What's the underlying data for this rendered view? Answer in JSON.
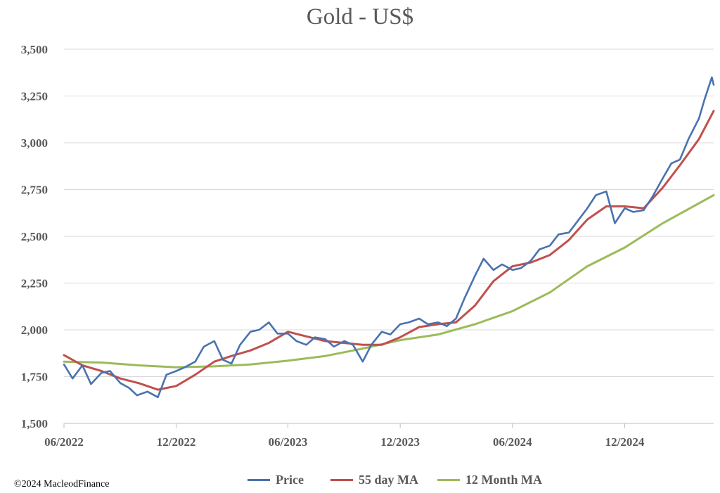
{
  "chart_data": {
    "type": "line",
    "title": "Gold - US$",
    "xlabel": "",
    "ylabel": "",
    "x_tick_labels": [
      "06/2022",
      "12/2022",
      "06/2023",
      "12/2023",
      "06/2024",
      "12/2024"
    ],
    "y_tick_labels": [
      "1,500",
      "1,750",
      "2,000",
      "2,250",
      "2,500",
      "2,750",
      "3,000",
      "3,250",
      "3,500"
    ],
    "ylim": [
      1500,
      3500
    ],
    "xlim": [
      "2022-06-01",
      "2025-04-25"
    ],
    "grid": "horizontal",
    "legend_position": "bottom",
    "series": [
      {
        "name": "Price",
        "color": "#4a72b0",
        "x": [
          "2022-06-01",
          "2022-06-15",
          "2022-07-01",
          "2022-07-15",
          "2022-08-01",
          "2022-08-15",
          "2022-09-01",
          "2022-09-15",
          "2022-09-28",
          "2022-10-15",
          "2022-11-01",
          "2022-11-15",
          "2022-12-01",
          "2022-12-15",
          "2023-01-01",
          "2023-01-15",
          "2023-02-01",
          "2023-02-15",
          "2023-03-01",
          "2023-03-15",
          "2023-04-01",
          "2023-04-15",
          "2023-05-01",
          "2023-05-15",
          "2023-06-01",
          "2023-06-15",
          "2023-07-01",
          "2023-07-15",
          "2023-08-01",
          "2023-08-15",
          "2023-09-01",
          "2023-09-15",
          "2023-10-01",
          "2023-10-15",
          "2023-11-01",
          "2023-11-15",
          "2023-12-01",
          "2023-12-15",
          "2024-01-01",
          "2024-01-15",
          "2024-02-01",
          "2024-02-15",
          "2024-03-01",
          "2024-03-15",
          "2024-04-01",
          "2024-04-15",
          "2024-05-01",
          "2024-05-15",
          "2024-06-01",
          "2024-06-15",
          "2024-07-01",
          "2024-07-15",
          "2024-08-01",
          "2024-08-15",
          "2024-09-01",
          "2024-09-15",
          "2024-10-01",
          "2024-10-15",
          "2024-11-01",
          "2024-11-15",
          "2024-12-01",
          "2024-12-15",
          "2025-01-01",
          "2025-01-15",
          "2025-02-01",
          "2025-02-15",
          "2025-03-01",
          "2025-03-15",
          "2025-04-01",
          "2025-04-10",
          "2025-04-22",
          "2025-04-25"
        ],
        "values": [
          1815,
          1740,
          1810,
          1710,
          1770,
          1780,
          1715,
          1690,
          1650,
          1670,
          1640,
          1760,
          1780,
          1800,
          1830,
          1910,
          1940,
          1840,
          1820,
          1920,
          1990,
          2000,
          2040,
          1980,
          1980,
          1940,
          1920,
          1960,
          1950,
          1910,
          1940,
          1920,
          1830,
          1920,
          1990,
          1975,
          2030,
          2040,
          2060,
          2030,
          2040,
          2020,
          2060,
          2170,
          2290,
          2380,
          2320,
          2350,
          2320,
          2330,
          2370,
          2430,
          2450,
          2510,
          2520,
          2580,
          2650,
          2720,
          2740,
          2570,
          2650,
          2630,
          2640,
          2710,
          2810,
          2890,
          2910,
          3020,
          3130,
          3230,
          3350,
          3310
        ]
      },
      {
        "name": "55 day MA",
        "color": "#c0504d",
        "x": [
          "2022-06-01",
          "2022-07-01",
          "2022-08-01",
          "2022-09-01",
          "2022-10-01",
          "2022-11-01",
          "2022-12-01",
          "2023-01-01",
          "2023-02-01",
          "2023-03-01",
          "2023-04-01",
          "2023-05-01",
          "2023-06-01",
          "2023-07-01",
          "2023-08-01",
          "2023-09-01",
          "2023-10-01",
          "2023-11-01",
          "2023-12-01",
          "2024-01-01",
          "2024-02-01",
          "2024-03-01",
          "2024-04-01",
          "2024-05-01",
          "2024-06-01",
          "2024-07-01",
          "2024-08-01",
          "2024-09-01",
          "2024-10-01",
          "2024-11-01",
          "2024-12-01",
          "2025-01-01",
          "2025-02-01",
          "2025-03-01",
          "2025-04-01",
          "2025-04-25"
        ],
        "values": [
          1865,
          1810,
          1780,
          1740,
          1715,
          1680,
          1700,
          1760,
          1830,
          1860,
          1890,
          1930,
          1990,
          1965,
          1940,
          1930,
          1920,
          1920,
          1960,
          2015,
          2030,
          2040,
          2130,
          2260,
          2340,
          2360,
          2400,
          2480,
          2590,
          2660,
          2660,
          2650,
          2760,
          2880,
          3020,
          3170
        ]
      },
      {
        "name": "12 Month MA",
        "color": "#9bbb59",
        "x": [
          "2022-06-01",
          "2022-08-01",
          "2022-10-01",
          "2022-12-01",
          "2023-02-01",
          "2023-04-01",
          "2023-06-01",
          "2023-08-01",
          "2023-10-01",
          "2023-12-01",
          "2024-02-01",
          "2024-04-01",
          "2024-06-01",
          "2024-08-01",
          "2024-10-01",
          "2024-12-01",
          "2025-02-01",
          "2025-04-25"
        ],
        "values": [
          1830,
          1825,
          1810,
          1800,
          1805,
          1815,
          1835,
          1860,
          1900,
          1945,
          1975,
          2030,
          2100,
          2200,
          2340,
          2440,
          2570,
          2720
        ]
      }
    ]
  },
  "copyright": "©2024 MacleodFinance"
}
